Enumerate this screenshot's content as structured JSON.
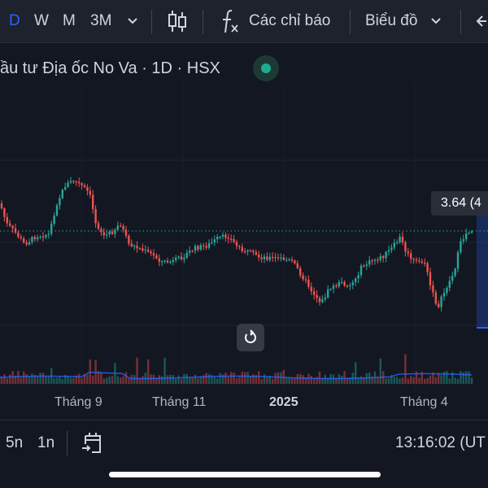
{
  "toolbar": {
    "intervals": [
      "D",
      "W",
      "M",
      "3M"
    ],
    "indicators_label": "Các chỉ báo",
    "chart_type_label": "Biểu đồ"
  },
  "legend": {
    "title": "ầu tư Địa ốc No Va · 1D · HSX",
    "market_status_color": "#22ab94"
  },
  "price_label": "3.64 (4",
  "x_axis_labels": [
    "Tháng 9",
    "Tháng 11",
    "2025",
    "Tháng 4"
  ],
  "bottom_bar": {
    "ranges": [
      "5n",
      "1n"
    ],
    "clock": "13:16:02 (UT"
  },
  "colors": {
    "up": "#26a69a",
    "down": "#ef5350",
    "accent": "#2962ff",
    "background": "#131722"
  },
  "icons": {
    "chevron": "chevron-down-icon",
    "candles": "candlestick-icon",
    "indicators": "function-icon",
    "back": "arrow-left-icon",
    "reset": "reset-icon",
    "goto_date": "calendar-goto-icon"
  }
}
